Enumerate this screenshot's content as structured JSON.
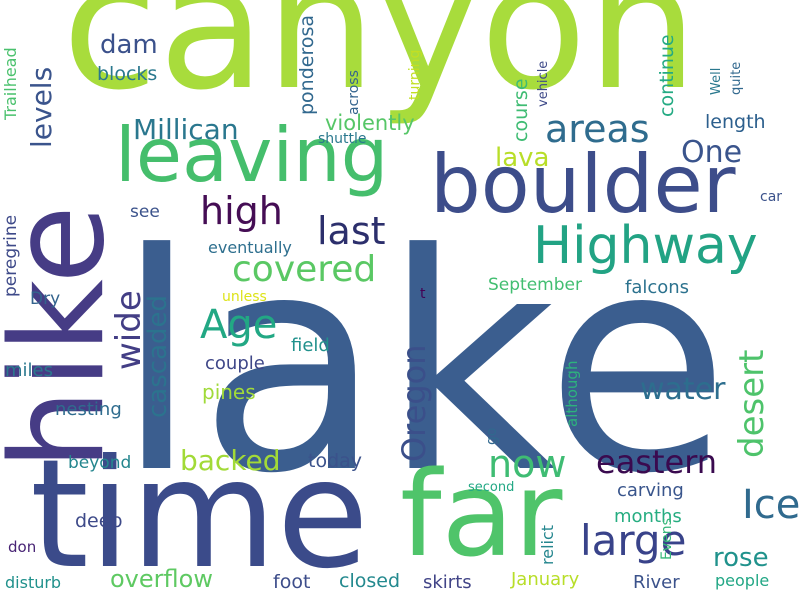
{
  "words": [
    {
      "text": "lake",
      "color": "#3b5e8f"
    },
    {
      "text": "canyon",
      "color": "#a8dc3c"
    },
    {
      "text": "time",
      "color": "#3b4b8a"
    },
    {
      "text": "far",
      "color": "#4fc46a"
    },
    {
      "text": "hike",
      "color": "#463c85"
    },
    {
      "text": "boulder",
      "color": "#3d4d8a"
    },
    {
      "text": "leaving",
      "color": "#45be6c"
    },
    {
      "text": "Highway",
      "color": "#22a384"
    },
    {
      "text": "high",
      "color": "#450d54"
    },
    {
      "text": "last",
      "color": "#2c2f6c"
    },
    {
      "text": "areas",
      "color": "#2f6c8e"
    },
    {
      "text": "covered",
      "color": "#5ac864"
    },
    {
      "text": "Age",
      "color": "#22a884"
    },
    {
      "text": "large",
      "color": "#39438a"
    },
    {
      "text": "Ice",
      "color": "#306a8e"
    },
    {
      "text": "now",
      "color": "#3fbc73"
    },
    {
      "text": "eastern",
      "color": "#3a0a4f"
    },
    {
      "text": "Oregon",
      "color": "#3b4f8a"
    },
    {
      "text": "desert",
      "color": "#4ec36b"
    },
    {
      "text": "wide",
      "color": "#433e85"
    },
    {
      "text": "water",
      "color": "#2d6e8e"
    },
    {
      "text": "backed",
      "color": "#a2da37"
    },
    {
      "text": "Millican",
      "color": "#2a778e"
    },
    {
      "text": "levels",
      "color": "#3a548c"
    },
    {
      "text": "dam",
      "color": "#3b518b"
    },
    {
      "text": "One",
      "color": "#3a548c"
    },
    {
      "text": "lava",
      "color": "#b8de29"
    },
    {
      "text": "cascaded",
      "color": "#2c738e"
    },
    {
      "text": "rose",
      "color": "#20928c"
    },
    {
      "text": "overflow",
      "color": "#5ec962"
    },
    {
      "text": "violently",
      "color": "#56c667"
    },
    {
      "text": "course",
      "color": "#3fbc73"
    },
    {
      "text": "blocks",
      "color": "#2a788e"
    },
    {
      "text": "continue",
      "color": "#24aa83"
    },
    {
      "text": "ponderosa",
      "color": "#31688e"
    },
    {
      "text": "length",
      "color": "#2c5f8d"
    },
    {
      "text": "see",
      "color": "#3b528b"
    },
    {
      "text": "eventually",
      "color": "#2e6f8e"
    },
    {
      "text": "September",
      "color": "#42be71"
    },
    {
      "text": "falcons",
      "color": "#2c728e"
    },
    {
      "text": "couple",
      "color": "#3f4788"
    },
    {
      "text": "field",
      "color": "#21918c"
    },
    {
      "text": "pines",
      "color": "#a0da39"
    },
    {
      "text": "nesting",
      "color": "#2f6c8e"
    },
    {
      "text": "miles",
      "color": "#2a788e"
    },
    {
      "text": "Dry",
      "color": "#33638d"
    },
    {
      "text": "peregrine",
      "color": "#3e4a89"
    },
    {
      "text": "Trailhead",
      "color": "#4ac16d"
    },
    {
      "text": "beyond",
      "color": "#24868e"
    },
    {
      "text": "today",
      "color": "#3b528b"
    },
    {
      "text": "carving",
      "color": "#39558c"
    },
    {
      "text": "months",
      "color": "#26ad81"
    },
    {
      "text": "deep",
      "color": "#3e4a89"
    },
    {
      "text": "foot",
      "color": "#3d4d8a"
    },
    {
      "text": "closed",
      "color": "#23898e"
    },
    {
      "text": "skirts",
      "color": "#414487"
    },
    {
      "text": "January",
      "color": "#b8de29"
    },
    {
      "text": "River",
      "color": "#3b528b"
    },
    {
      "text": "people",
      "color": "#22a785"
    },
    {
      "text": "disturb",
      "color": "#21918c"
    },
    {
      "text": "don",
      "color": "#482475"
    },
    {
      "text": "second",
      "color": "#22a884"
    },
    {
      "text": "relict",
      "color": "#24868e"
    },
    {
      "text": "Evens",
      "color": "#35b779"
    },
    {
      "text": "go",
      "color": "#31688e"
    },
    {
      "text": "although",
      "color": "#2db27d"
    },
    {
      "text": "unless",
      "color": "#dde318"
    },
    {
      "text": "t",
      "color": "#440154"
    },
    {
      "text": "car",
      "color": "#3b528b"
    },
    {
      "text": "shuttle",
      "color": "#2a788e"
    },
    {
      "text": "across",
      "color": "#33638d"
    },
    {
      "text": "turning",
      "color": "#c2df23"
    },
    {
      "text": "vehicle",
      "color": "#3e4989"
    },
    {
      "text": "Well",
      "color": "#2a788e"
    },
    {
      "text": "quite",
      "color": "#31688e"
    }
  ]
}
